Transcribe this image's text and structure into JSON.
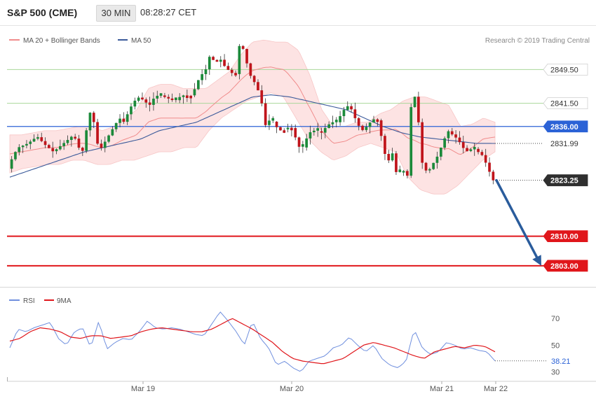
{
  "header": {
    "title": "S&P 500 (CME)",
    "timeframe": "30 MIN",
    "time": "08:28:27 CET"
  },
  "legend_main": {
    "bollinger": "MA 20 + Bollinger Bands",
    "ma50": "MA 50"
  },
  "credit": "Research © 2019 Trading Central",
  "legend_rsi": {
    "rsi": "RSI",
    "ma": "9MA"
  },
  "colors": {
    "bull": "#1b8a3a",
    "bear": "#c0141b",
    "bollinger_fill": "#fde3e3",
    "bollinger_mid": "#f08c8c",
    "ma50": "#3b5a9a",
    "level_green": "#a9d79a",
    "level_blue": "#2b62d6",
    "level_red": "#e0161b",
    "arrow": "#2a5c9c",
    "rsi": "#6f8fde",
    "rsi_ma": "#e0161b"
  },
  "chart_data": [
    {
      "type": "candlestick",
      "title": "S&P 500 (CME)",
      "xlabel": "",
      "ylabel": "",
      "x_ticks": [
        "Mar 19",
        "Mar 20",
        "Mar 21",
        "Mar 22"
      ],
      "ylim": [
        2798,
        2860
      ],
      "levels": [
        {
          "value": 2849.5,
          "label": "2849.50",
          "color": "#a9d79a",
          "style": "solid",
          "badge": "white"
        },
        {
          "value": 2841.5,
          "label": "2841.50",
          "color": "#a9d79a",
          "style": "solid",
          "badge": "white"
        },
        {
          "value": 2836.0,
          "label": "2836.00",
          "color": "#2b62d6",
          "style": "solid",
          "badge": "blue"
        },
        {
          "value": 2831.99,
          "label": "2831.99",
          "color": "#555555",
          "style": "dotted",
          "badge": "plain"
        },
        {
          "value": 2823.25,
          "label": "2823.25",
          "color": "#555555",
          "style": "dotted",
          "badge": "dark"
        },
        {
          "value": 2810.0,
          "label": "2810.00",
          "color": "#e0161b",
          "style": "solid",
          "badge": "red"
        },
        {
          "value": 2803.0,
          "label": "2803.00",
          "color": "#e0161b",
          "style": "solid",
          "badge": "red"
        }
      ],
      "close_path": [
        2826,
        2829,
        2831,
        2831.5,
        2832,
        2833,
        2833.5,
        2832,
        2831,
        2830,
        2831,
        2832,
        2833,
        2834,
        2831,
        2830,
        2840,
        2837,
        2830,
        2832,
        2834,
        2836,
        2838,
        2837,
        2840,
        2842,
        2843,
        2842,
        2841,
        2843,
        2843.5,
        2843,
        2842.5,
        2842,
        2843,
        2843.5,
        2843,
        2845,
        2848,
        2849,
        2853,
        2851,
        2852,
        2850,
        2849,
        2848,
        2857,
        2852,
        2848,
        2846,
        2843,
        2836,
        2838,
        2836,
        2835,
        2835.5,
        2836,
        2833,
        2830,
        2833,
        2835,
        2835,
        2834.5,
        2836,
        2837,
        2837,
        2839,
        2841,
        2840,
        2837,
        2835,
        2836,
        2837.5,
        2838,
        2833,
        2827,
        2830,
        2824,
        2826,
        2824,
        2846,
        2840,
        2827,
        2825,
        2827,
        2829,
        2832,
        2835,
        2834,
        2833,
        2831,
        2830,
        2831,
        2830,
        2829,
        2826,
        2823.25
      ],
      "candles_count": 130,
      "bollinger_upper": [
        2834,
        2834,
        2834.5,
        2835,
        2835,
        2835.5,
        2836,
        2836,
        2835,
        2836,
        2838,
        2840,
        2845,
        2846,
        2846,
        2845,
        2845,
        2845,
        2847,
        2849,
        2853,
        2856,
        2856.5,
        2856,
        2856,
        2854,
        2848,
        2840,
        2836,
        2836,
        2837,
        2837,
        2839,
        2840,
        2842,
        2843,
        2843,
        2842,
        2841,
        2836,
        2836.5,
        2838,
        2837
      ],
      "bollinger_lower": [
        2825,
        2826,
        2826.5,
        2827,
        2827,
        2828,
        2828,
        2827,
        2827,
        2828,
        2828,
        2829,
        2830,
        2830,
        2831,
        2831,
        2835,
        2838,
        2840,
        2842,
        2843,
        2844,
        2843,
        2838,
        2833,
        2830,
        2828,
        2829,
        2831,
        2832,
        2831,
        2830,
        2824,
        2821,
        2820,
        2820,
        2822,
        2825,
        2828,
        2830
      ],
      "ma50": [
        2824,
        2825.5,
        2827,
        2828.5,
        2830,
        2831,
        2832,
        2833,
        2835,
        2836,
        2837,
        2839,
        2841,
        2843,
        2843.5,
        2843,
        2842,
        2841,
        2840,
        2838,
        2836,
        2834.5,
        2833.5,
        2833,
        2832.5,
        2832,
        2831.99
      ]
    },
    {
      "type": "line",
      "title": "RSI",
      "ylim": [
        25,
        80
      ],
      "y_ticks": [
        70,
        50,
        30
      ],
      "current_value_label": "38.21",
      "series": [
        {
          "name": "RSI",
          "values": [
            48,
            62,
            60,
            63,
            65,
            67,
            55,
            50,
            60,
            63,
            48,
            68,
            47,
            52,
            55,
            54,
            60,
            68,
            63,
            62,
            63,
            62,
            60,
            58,
            57,
            66,
            75,
            68,
            60,
            50,
            68,
            55,
            48,
            35,
            38,
            33,
            30,
            38,
            40,
            42,
            48,
            50,
            56,
            50,
            45,
            50,
            40,
            35,
            33,
            38,
            62,
            48,
            43,
            45,
            52,
            50,
            47,
            48,
            46,
            45,
            38.21
          ]
        },
        {
          "name": "9MA",
          "values": [
            53,
            55,
            60,
            63,
            62,
            60,
            56,
            55,
            57,
            57,
            55,
            56,
            57,
            60,
            62,
            63,
            62,
            61,
            60,
            60,
            62,
            66,
            70,
            66,
            62,
            57,
            52,
            45,
            40,
            38,
            37,
            36,
            38,
            40,
            45,
            50,
            52,
            50,
            48,
            45,
            42,
            40,
            45,
            47,
            49,
            48,
            50,
            49,
            45
          ]
        }
      ]
    }
  ]
}
